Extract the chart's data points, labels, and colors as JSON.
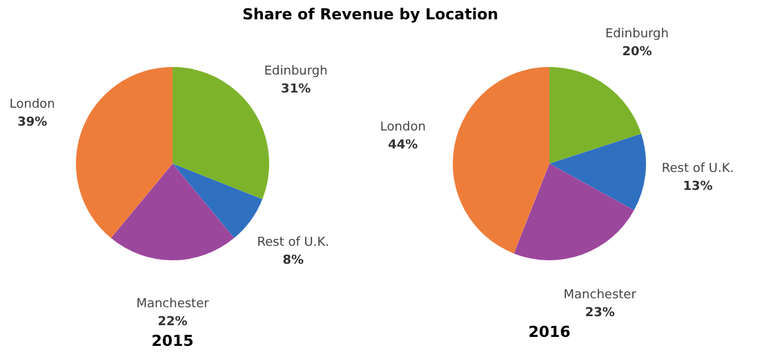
{
  "chart_data": [
    {
      "type": "pie",
      "title": "Share of Revenue by Location",
      "xlabel": "2015",
      "categories": [
        "Edinburgh",
        "Rest of U.K.",
        "Manchester",
        "London"
      ],
      "values": [
        31,
        8,
        22,
        39
      ],
      "value_labels": [
        "31%",
        "8%",
        "22%",
        "39%"
      ],
      "colors": [
        "#7db32b",
        "#3070c0",
        "#9b479c",
        "#ef7d3a"
      ],
      "legend": false
    },
    {
      "type": "pie",
      "xlabel": "2016",
      "categories": [
        "Edinburgh",
        "Rest of U.K.",
        "Manchester",
        "London"
      ],
      "values": [
        20,
        13,
        23,
        44
      ],
      "value_labels": [
        "20%",
        "13%",
        "23%",
        "44%"
      ],
      "colors": [
        "#7db32b",
        "#3070c0",
        "#9b479c",
        "#ef7d3a"
      ],
      "legend": false
    }
  ]
}
